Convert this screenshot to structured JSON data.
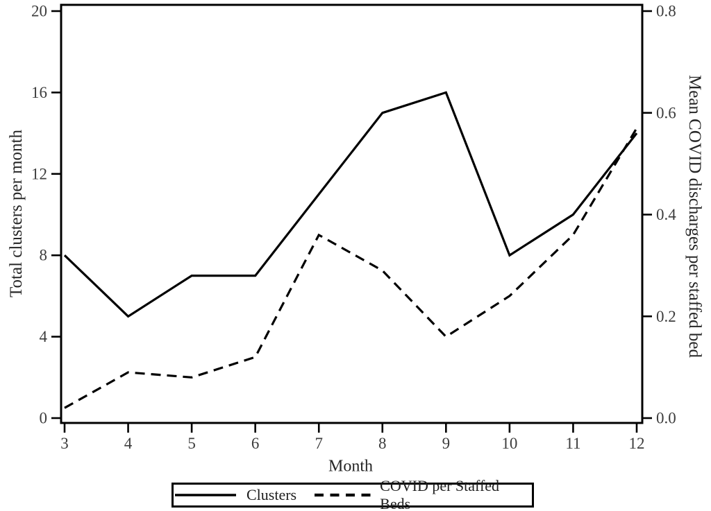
{
  "chart_data": {
    "type": "line",
    "title": "",
    "x": [
      3,
      4,
      5,
      6,
      7,
      8,
      9,
      10,
      11,
      12
    ],
    "series": [
      {
        "name": "Clusters",
        "axis": "left",
        "style": "solid",
        "color": "#000000",
        "values": [
          8,
          5,
          7,
          7,
          11,
          15,
          16,
          8,
          10,
          14
        ]
      },
      {
        "name": "COVID per Staffed Beds",
        "axis": "right",
        "style": "dashed",
        "color": "#000000",
        "values": [
          0.02,
          0.09,
          0.08,
          0.12,
          0.36,
          0.29,
          0.16,
          0.24,
          0.36,
          0.57
        ]
      }
    ],
    "x_axis": {
      "label": "Month",
      "ticks": [
        3,
        4,
        5,
        6,
        7,
        8,
        9,
        10,
        11,
        12
      ],
      "range": [
        3,
        12
      ]
    },
    "left_axis": {
      "label": "Total clusters per month",
      "ticks": [
        0,
        4,
        8,
        12,
        16,
        20
      ],
      "range": [
        0,
        20
      ]
    },
    "right_axis": {
      "label": "Mean COVID discharges per staffed bed",
      "ticks": [
        "0.0",
        "0.2",
        "0.4",
        "0.6",
        "0.8"
      ],
      "tick_values": [
        0,
        0.2,
        0.4,
        0.6,
        0.8
      ],
      "range": [
        0,
        0.8
      ]
    },
    "legend": {
      "position": "bottom",
      "entries": [
        "Clusters",
        "COVID per Staffed Beds"
      ]
    },
    "grid": "off",
    "colors": {
      "line": "#000000",
      "frame": "#000000",
      "background": "#ffffff",
      "tick_text": "#3c3c3c",
      "title_text": "#262626"
    }
  }
}
